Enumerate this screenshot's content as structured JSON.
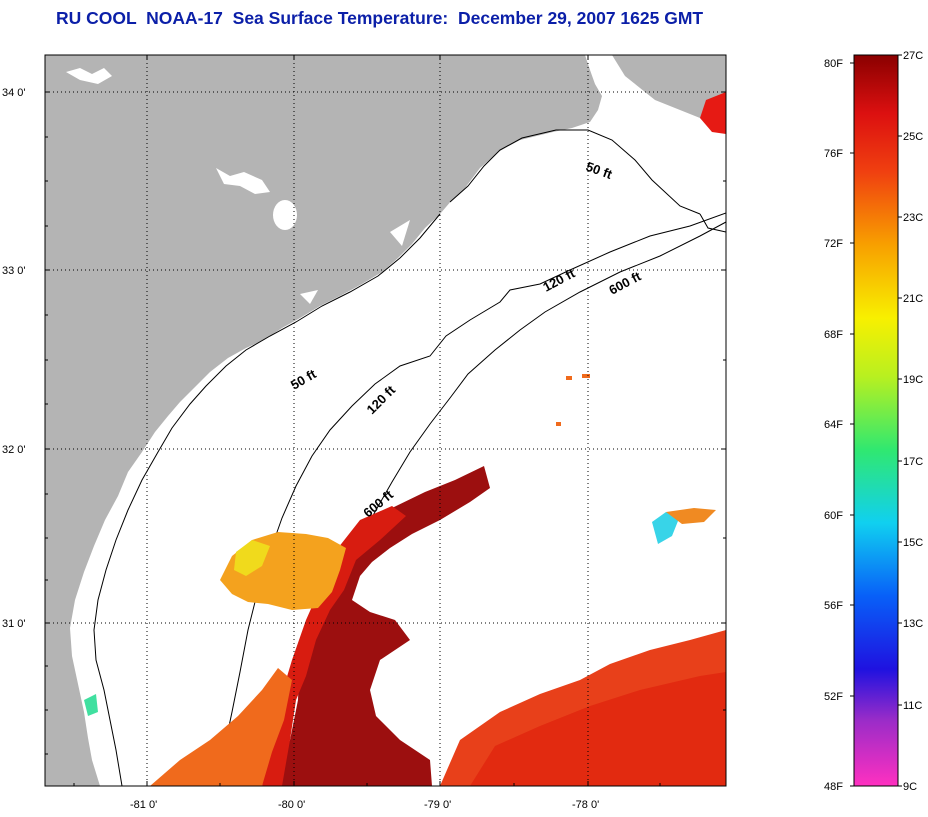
{
  "title": "RU COOL  NOAA-17  Sea Surface Temperature:  December 29, 2007 1625 GMT",
  "map": {
    "lat_labels": [
      "34 0'",
      "33 0'",
      "32 0'",
      "31 0'"
    ],
    "lon_labels": [
      "-81 0'",
      "-80 0'",
      "-79 0'",
      "-78 0'"
    ],
    "contour_labels": [
      "50 ft",
      "120 ft",
      "600 ft",
      "50 ft",
      "120 ft",
      "600 ft"
    ],
    "colors": {
      "land": "#b4b4b4",
      "ocean_nodata": "#ffffff",
      "sst_dark_red": "#9c0f0f",
      "sst_red": "#e22a10",
      "sst_orange": "#f2691a",
      "sst_yellow_orange": "#f6a21a",
      "sst_yellow": "#f6e01a"
    }
  },
  "colorbar": {
    "f_labels": [
      "80F",
      "76F",
      "72F",
      "68F",
      "64F",
      "60F",
      "56F",
      "52F",
      "48F"
    ],
    "c_labels": [
      "27C",
      "25C",
      "23C",
      "21C",
      "19C",
      "17C",
      "15C",
      "13C",
      "11C",
      "9C"
    ],
    "scale_stops": [
      "#ff30c0",
      "#9a2cc8",
      "#1f12e0",
      "#0860f8",
      "#10d0f0",
      "#30e870",
      "#b8f020",
      "#f8f000",
      "#f8a000",
      "#f04010",
      "#dc1010",
      "#8a0000"
    ]
  }
}
